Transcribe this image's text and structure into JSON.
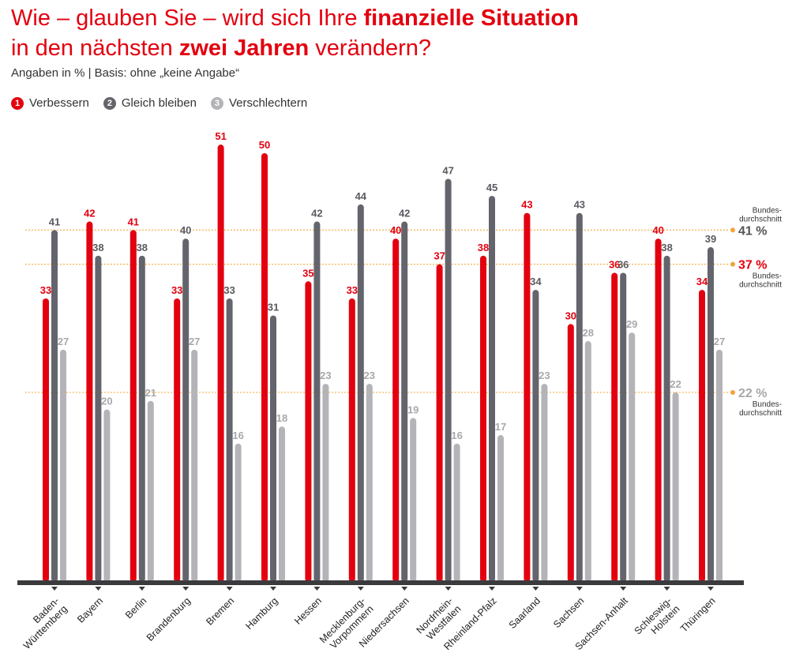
{
  "header": {
    "title_part1": "Wie – glauben Sie – wird sich Ihre ",
    "title_highlight1": "finanzielle Situation",
    "title_part2": "in den nächsten ",
    "title_highlight2": "zwei Jahren",
    "title_part3": " verändern?",
    "subtitle": "Angaben in % | Basis: ohne „keine Angabe“"
  },
  "legend": [
    {
      "number": "1",
      "label": "Verbessern",
      "color": "#e3000f"
    },
    {
      "number": "2",
      "label": "Gleich bleiben",
      "color": "#64646c"
    },
    {
      "number": "3",
      "label": "Verschlechtern",
      "color": "#b4b4b8"
    }
  ],
  "chart_data": {
    "type": "bar",
    "title": "Wie – glauben Sie – wird sich Ihre finanzielle Situation in den nächsten zwei Jahren verändern?",
    "ylabel": "Angaben in %",
    "ylim": [
      0,
      51
    ],
    "categories": [
      [
        "Baden-",
        "Württemberg"
      ],
      [
        "Bayern"
      ],
      [
        "Berlin"
      ],
      [
        "Brandenburg"
      ],
      [
        "Bremen"
      ],
      [
        "Hamburg"
      ],
      [
        "Hessen"
      ],
      [
        "Mecklenburg-",
        "Vorpommern"
      ],
      [
        "Niedersachsen"
      ],
      [
        "Nordrhein-",
        "Westfalen"
      ],
      [
        "Rheinland-Pfalz"
      ],
      [
        "Saarland"
      ],
      [
        "Sachsen"
      ],
      [
        "Sachsen-Anhalt"
      ],
      [
        "Schleswig-",
        "Holstein"
      ],
      [
        "Thüringen"
      ]
    ],
    "series": [
      {
        "name": "Verbessern",
        "color": "#e3000f",
        "label_color": "#e3000f",
        "values": [
          33,
          42,
          41,
          33,
          51,
          50,
          35,
          33,
          40,
          37,
          38,
          43,
          30,
          36,
          40,
          34
        ]
      },
      {
        "name": "Gleich bleiben",
        "color": "#64646c",
        "label_color": "#5a5a60",
        "values": [
          41,
          38,
          38,
          40,
          33,
          31,
          42,
          44,
          42,
          47,
          45,
          34,
          43,
          36,
          38,
          39
        ]
      },
      {
        "name": "Verschlechtern",
        "color": "#b4b4b8",
        "label_color": "#a8a8ac",
        "values": [
          27,
          20,
          21,
          27,
          16,
          18,
          23,
          23,
          19,
          16,
          17,
          23,
          28,
          29,
          22,
          27
        ]
      }
    ],
    "reference_lines": [
      {
        "value": 41,
        "label": "41 %",
        "note": "Bundes-durchschnitt",
        "note_lines": [
          "Bundes-",
          "durchschnitt"
        ],
        "note_position": "above",
        "color": "#555558"
      },
      {
        "value": 37,
        "label": "37 %",
        "note": "Bundes-durchschnitt",
        "note_lines": [
          "Bundes-",
          "durchschnitt"
        ],
        "note_position": "below",
        "color": "#e3000f"
      },
      {
        "value": 22,
        "label": "22 %",
        "note": "Bundes-durchschnitt",
        "note_lines": [
          "Bundes-",
          "durchschnitt"
        ],
        "note_position": "below",
        "color": "#a8a8ac"
      }
    ]
  }
}
